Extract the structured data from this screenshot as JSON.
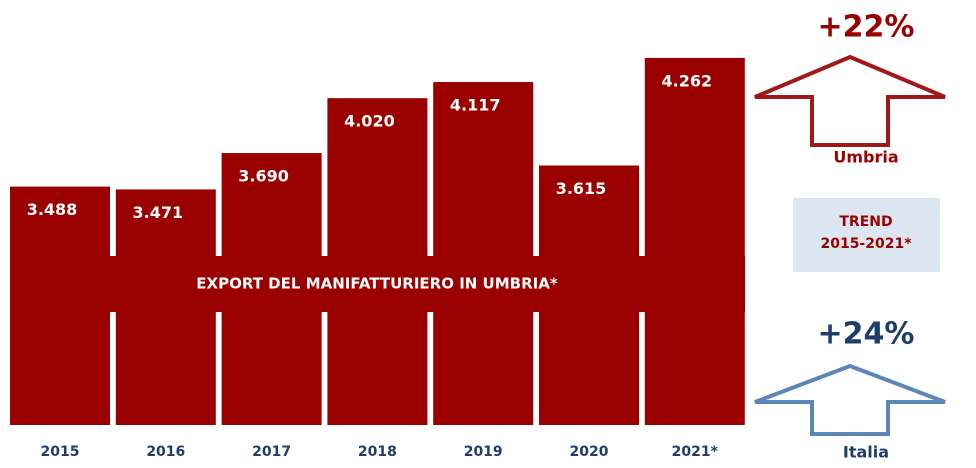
{
  "chart_data": {
    "type": "bar",
    "title": "EXPORT DEL MANIFATTURIERO IN UMBRIA*",
    "categories": [
      "2015",
      "2016",
      "2017",
      "2018",
      "2019",
      "2020",
      "2021*"
    ],
    "values": [
      3488,
      3471,
      3690,
      4020,
      4117,
      3615,
      4262
    ],
    "value_labels": [
      "3.488",
      "3.471",
      "3.690",
      "4.020",
      "4.117",
      "3.615",
      "4.262"
    ],
    "color": "#9b0000",
    "ylim": [
      2054,
      4400
    ],
    "annotations": {
      "umbria_trend": "+22%",
      "umbria_label": "Umbria",
      "trend_title": "TREND",
      "trend_period": "2015-2021*",
      "italia_trend": "+24%",
      "italia_label": "Italia"
    }
  }
}
